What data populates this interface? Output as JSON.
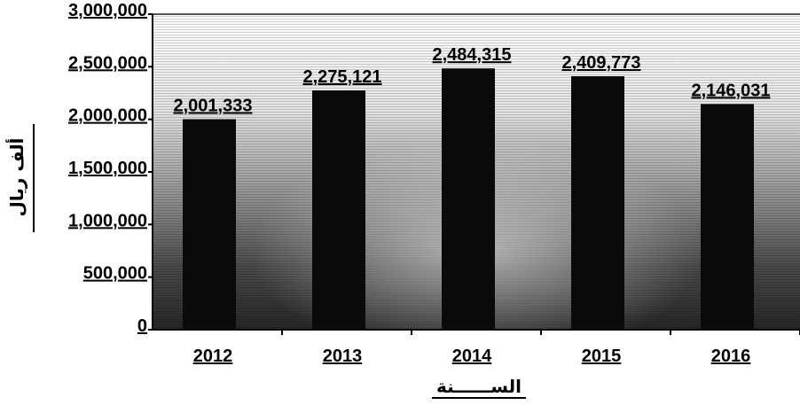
{
  "chart_data": {
    "type": "bar",
    "categories": [
      "2012",
      "2013",
      "2014",
      "2015",
      "2016"
    ],
    "values": [
      2001333,
      2275121,
      2484315,
      2409773,
      2146031
    ],
    "data_labels": [
      "2,001,333",
      "2,275,121",
      "2,484,315",
      "2,409,773",
      "2,146,031"
    ],
    "y_ticks": [
      0,
      500000,
      1000000,
      1500000,
      2000000,
      2500000,
      3000000
    ],
    "y_tick_labels": [
      "0",
      "500,000",
      "1,000,000",
      "1,500,000",
      "2,000,000",
      "2,500,000",
      "3,000,000"
    ],
    "ylim": [
      0,
      3000000
    ],
    "xlabel": "الســــــنة",
    "ylabel": "ألف ريال",
    "title": "",
    "grid": false,
    "legend": "none",
    "colors": {
      "bar": "#0a0a0a",
      "plot_background_top": "#ffffff",
      "plot_background_bottom": "#2a2a2a",
      "text": "#000000"
    }
  }
}
